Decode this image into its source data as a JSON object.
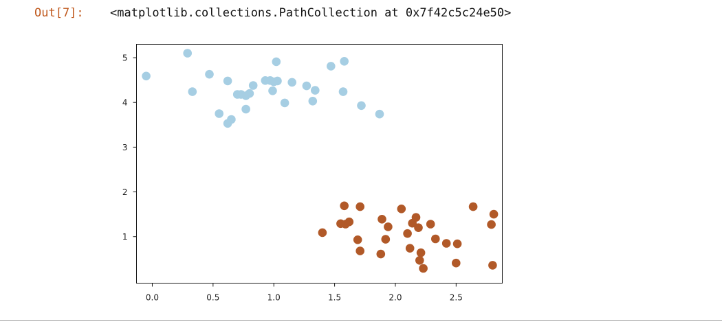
{
  "output": {
    "prompt": "Out[7]:",
    "repr": "<matplotlib.collections.PathCollection at 0x7f42c5c24e50>"
  },
  "chart_data": {
    "type": "scatter",
    "title": "",
    "xlabel": "",
    "ylabel": "",
    "xlim": [
      -0.13,
      2.88
    ],
    "ylim": [
      -0.04,
      5.3
    ],
    "xticks": [
      0.0,
      0.5,
      1.0,
      1.5,
      2.0,
      2.5
    ],
    "xtick_labels": [
      "0.0",
      "0.5",
      "1.0",
      "1.5",
      "2.0",
      "2.5"
    ],
    "yticks": [
      1,
      2,
      3,
      4,
      5
    ],
    "ytick_labels": [
      "1",
      "2",
      "3",
      "4",
      "5"
    ],
    "grid": false,
    "legend": false,
    "series": [
      {
        "color": "#a6cee3",
        "points": [
          [
            -0.05,
            4.59
          ],
          [
            0.29,
            5.1
          ],
          [
            0.33,
            4.24
          ],
          [
            0.47,
            4.63
          ],
          [
            0.55,
            3.75
          ],
          [
            0.62,
            4.48
          ],
          [
            0.62,
            3.53
          ],
          [
            0.65,
            3.62
          ],
          [
            0.7,
            4.18
          ],
          [
            0.73,
            4.18
          ],
          [
            0.77,
            3.85
          ],
          [
            0.77,
            4.15
          ],
          [
            0.8,
            4.2
          ],
          [
            0.83,
            4.38
          ],
          [
            0.93,
            4.49
          ],
          [
            0.97,
            4.49
          ],
          [
            0.99,
            4.26
          ],
          [
            1.0,
            4.46
          ],
          [
            1.02,
            4.91
          ],
          [
            1.03,
            4.48
          ],
          [
            1.09,
            3.99
          ],
          [
            1.15,
            4.45
          ],
          [
            1.27,
            4.37
          ],
          [
            1.32,
            4.03
          ],
          [
            1.34,
            4.27
          ],
          [
            1.47,
            4.81
          ],
          [
            1.57,
            4.24
          ],
          [
            1.58,
            4.92
          ],
          [
            1.72,
            3.93
          ],
          [
            1.87,
            3.74
          ]
        ]
      },
      {
        "color": "#b15928",
        "points": [
          [
            1.4,
            1.09
          ],
          [
            1.55,
            1.29
          ],
          [
            1.58,
            1.69
          ],
          [
            1.59,
            1.28
          ],
          [
            1.62,
            1.33
          ],
          [
            1.69,
            0.93
          ],
          [
            1.71,
            1.67
          ],
          [
            1.71,
            0.68
          ],
          [
            1.88,
            0.61
          ],
          [
            1.89,
            1.39
          ],
          [
            1.92,
            0.94
          ],
          [
            1.94,
            1.22
          ],
          [
            2.05,
            1.62
          ],
          [
            2.1,
            1.07
          ],
          [
            2.12,
            0.74
          ],
          [
            2.14,
            1.3
          ],
          [
            2.17,
            1.43
          ],
          [
            2.19,
            1.2
          ],
          [
            2.2,
            0.47
          ],
          [
            2.21,
            0.64
          ],
          [
            2.23,
            0.29
          ],
          [
            2.29,
            1.28
          ],
          [
            2.33,
            0.95
          ],
          [
            2.42,
            0.85
          ],
          [
            2.5,
            0.41
          ],
          [
            2.51,
            0.84
          ],
          [
            2.64,
            1.67
          ],
          [
            2.79,
            1.27
          ],
          [
            2.8,
            0.36
          ],
          [
            2.81,
            1.5
          ]
        ]
      }
    ]
  }
}
